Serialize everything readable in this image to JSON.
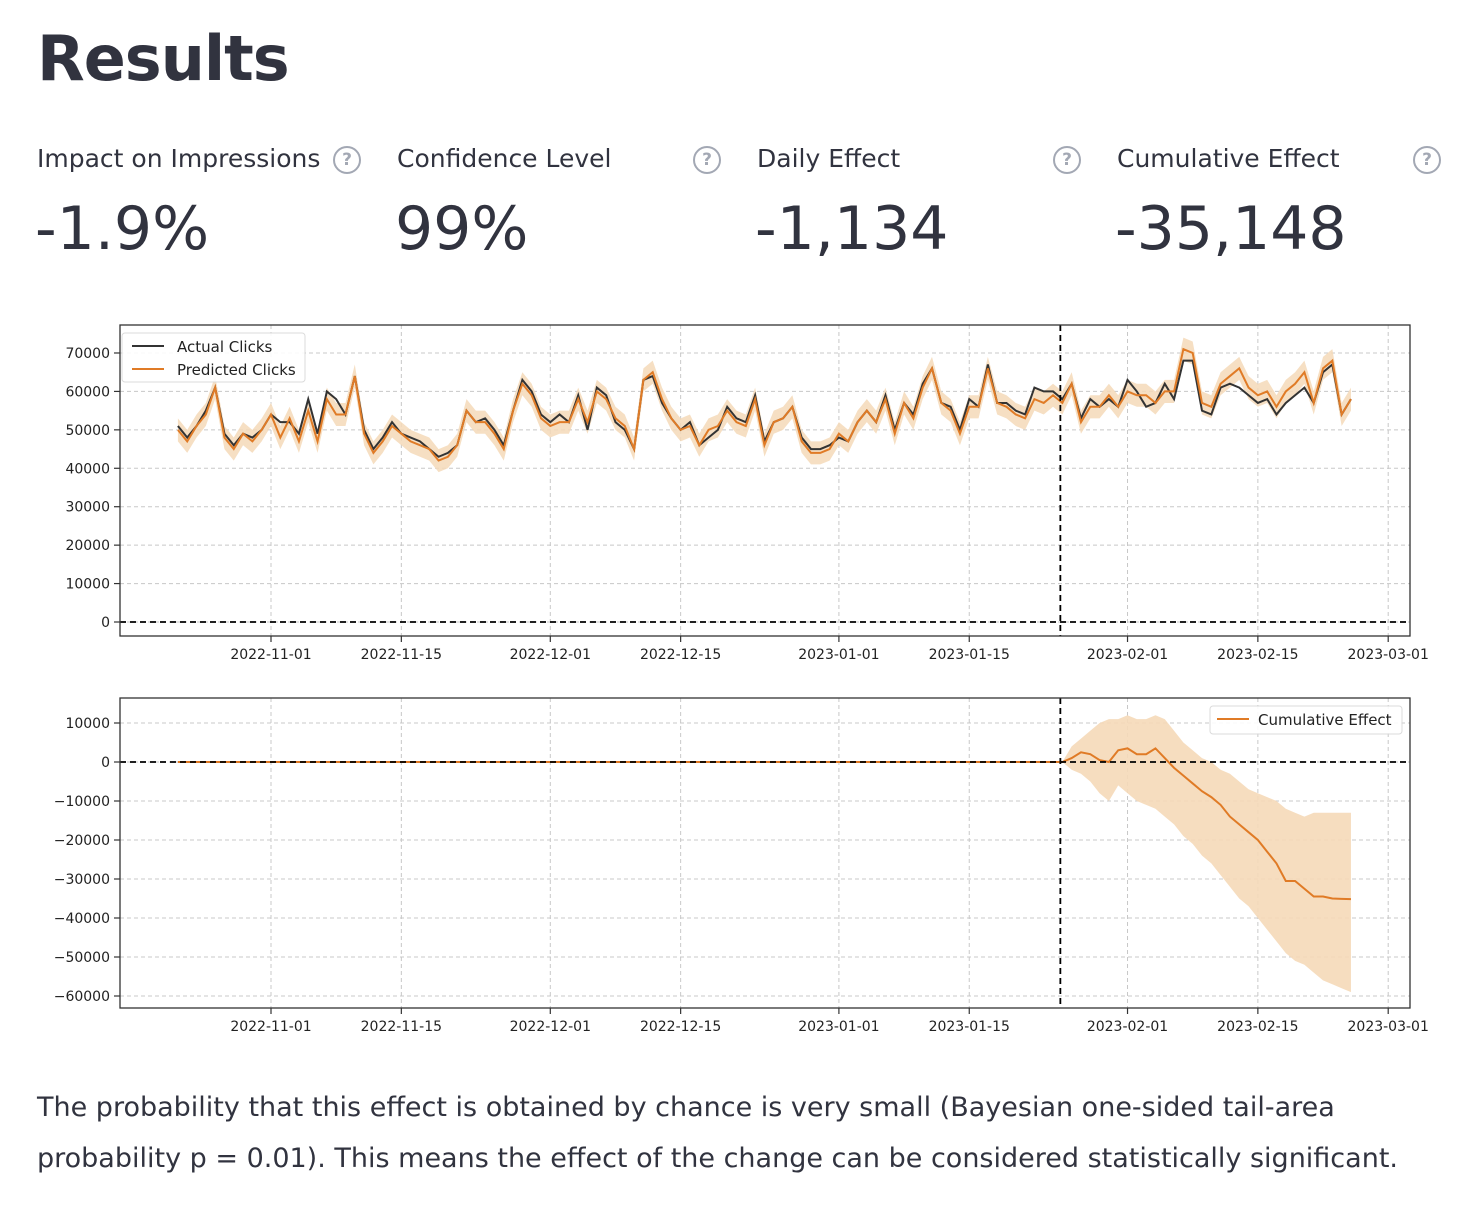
{
  "header": {
    "title": "Results"
  },
  "metrics": [
    {
      "label": "Impact on Impressions",
      "value": "-1.9%",
      "icon": "help-circle-icon"
    },
    {
      "label": "Confidence Level",
      "value": "99%",
      "icon": "help-circle-icon"
    },
    {
      "label": "Daily Effect",
      "value": "-1,134",
      "icon": "help-circle-icon"
    },
    {
      "label": "Cumulative Effect",
      "value": "-35,148",
      "icon": "help-circle-icon"
    }
  ],
  "summary": "The probability that this effect is obtained by chance is very small (Bayesian one-sided tail-area probability p = 0.01). This means the effect of the change can be considered statistically significant.",
  "colors": {
    "actual": "#333333",
    "predicted": "#e07b26",
    "band": "#f5d9b8",
    "text": "#31333f"
  },
  "chart_data": [
    {
      "type": "line",
      "title": "",
      "xlabel": "",
      "ylabel": "",
      "x_start_date": "2022-10-22",
      "intervention_date": "2023-01-25",
      "ylim": [
        -3500,
        77000
      ],
      "yticks": [
        "0",
        "10000",
        "20000",
        "30000",
        "40000",
        "50000",
        "60000",
        "70000"
      ],
      "xticks": [
        "2022-11-01",
        "2022-11-15",
        "2022-12-01",
        "2022-12-15",
        "2023-01-01",
        "2023-01-15",
        "2023-02-01",
        "2023-02-15",
        "2023-03-01"
      ],
      "grid": true,
      "legend": "top-left",
      "predicted_ci_halfwidth": 3000,
      "series": [
        {
          "name": "Actual Clicks",
          "color": "#333333",
          "values": [
            51000,
            48000,
            51000,
            55000,
            61000,
            49000,
            46000,
            49000,
            48000,
            50000,
            54000,
            52000,
            52000,
            49000,
            58000,
            49000,
            60000,
            58000,
            54000,
            64000,
            50000,
            45000,
            48000,
            52000,
            49000,
            48000,
            47000,
            45000,
            43000,
            44000,
            46000,
            55000,
            52000,
            53000,
            50000,
            46000,
            55000,
            63000,
            60000,
            54000,
            52000,
            54000,
            52000,
            59000,
            50000,
            61000,
            59000,
            52000,
            50000,
            45000,
            63000,
            64000,
            57000,
            53000,
            50000,
            52000,
            46000,
            48000,
            50000,
            56000,
            53000,
            52000,
            59000,
            47000,
            52000,
            53000,
            56000,
            48000,
            45000,
            45000,
            46000,
            48000,
            47000,
            52000,
            55000,
            52000,
            59000,
            50000,
            57000,
            54000,
            62000,
            66000,
            57000,
            56000,
            50000,
            58000,
            56000,
            67000,
            57000,
            57000,
            55000,
            54000,
            61000,
            60000,
            60000,
            58000,
            62000,
            53000,
            58000,
            56000,
            58000,
            56000,
            63000,
            60000,
            56000,
            57000,
            62000,
            58000,
            68000,
            68000,
            55000,
            54000,
            61000,
            62000,
            61000,
            59000,
            57000,
            58000,
            54000,
            57000,
            59000,
            61000,
            57000,
            65000,
            67000,
            54000,
            58000
          ]
        },
        {
          "name": "Predicted Clicks",
          "color": "#e07b26",
          "values": [
            50000,
            47000,
            51000,
            54000,
            61000,
            48000,
            45000,
            49000,
            47000,
            50000,
            54000,
            48000,
            53000,
            47000,
            55000,
            47000,
            58000,
            54000,
            54000,
            64000,
            49000,
            44000,
            47000,
            51000,
            49000,
            47000,
            46000,
            45000,
            42000,
            43000,
            46000,
            55000,
            52000,
            52000,
            49000,
            45000,
            55000,
            62000,
            59000,
            53000,
            51000,
            52000,
            52000,
            58000,
            52000,
            60000,
            58000,
            53000,
            51000,
            45000,
            63000,
            65000,
            58000,
            53000,
            50000,
            51000,
            46000,
            50000,
            51000,
            55000,
            52000,
            51000,
            58000,
            46000,
            52000,
            53000,
            56000,
            47000,
            44000,
            44000,
            45000,
            49000,
            47000,
            52000,
            55000,
            52000,
            58000,
            49000,
            57000,
            53000,
            61000,
            66000,
            57000,
            55000,
            49000,
            56000,
            56000,
            66000,
            57000,
            56000,
            54000,
            53000,
            58000,
            57000,
            59000,
            57000,
            62000,
            52000,
            56000,
            56000,
            59000,
            56000,
            60000,
            59000,
            59000,
            57000,
            60000,
            60000,
            71000,
            70000,
            57000,
            56000,
            62000,
            64000,
            66000,
            61000,
            59000,
            60000,
            56000,
            60000,
            62000,
            65000,
            57000,
            66000,
            68000,
            54000,
            58000
          ]
        }
      ]
    },
    {
      "type": "area",
      "title": "",
      "xlabel": "",
      "ylabel": "",
      "ylim": [
        -63000,
        16000
      ],
      "yticks": [
        "10000",
        "0",
        "−10000",
        "−20000",
        "−30000",
        "−40000",
        "−50000",
        "−60000"
      ],
      "xticks": [
        "2022-11-01",
        "2022-11-15",
        "2022-12-01",
        "2022-12-15",
        "2023-01-01",
        "2023-01-15",
        "2023-02-01",
        "2023-02-15",
        "2023-03-01"
      ],
      "grid": true,
      "legend": "top-right",
      "series": [
        {
          "name": "Cumulative Effect",
          "color": "#e07b26",
          "post_values": [
            0,
            1000,
            2500,
            2000,
            500,
            0,
            3000,
            3500,
            2000,
            2000,
            3500,
            1000,
            -1500,
            -3500,
            -5500,
            -7500,
            -9000,
            -11000,
            -14000,
            -16000,
            -18000,
            -20000,
            -23000,
            -26000,
            -30500,
            -30500,
            -32500,
            -34500,
            -34500,
            -35000,
            -35100,
            -35148
          ],
          "post_upper": [
            0,
            4000,
            6000,
            8000,
            10000,
            11000,
            11000,
            12000,
            11000,
            11000,
            12000,
            11000,
            8000,
            5000,
            3000,
            1000,
            0,
            -2000,
            -3000,
            -5000,
            -7000,
            -8000,
            -9000,
            -10000,
            -12000,
            -13000,
            -14000,
            -13000,
            -13000,
            -13000,
            -13000,
            -13000
          ],
          "post_lower": [
            0,
            -2000,
            -3000,
            -5000,
            -8000,
            -10000,
            -6000,
            -8000,
            -10000,
            -11000,
            -12000,
            -14000,
            -16000,
            -19000,
            -21000,
            -24000,
            -26000,
            -29000,
            -32000,
            -35000,
            -37000,
            -40000,
            -43000,
            -46000,
            -49000,
            -51000,
            -52000,
            -54000,
            -56000,
            -57000,
            -58000,
            -59000
          ]
        }
      ]
    }
  ]
}
